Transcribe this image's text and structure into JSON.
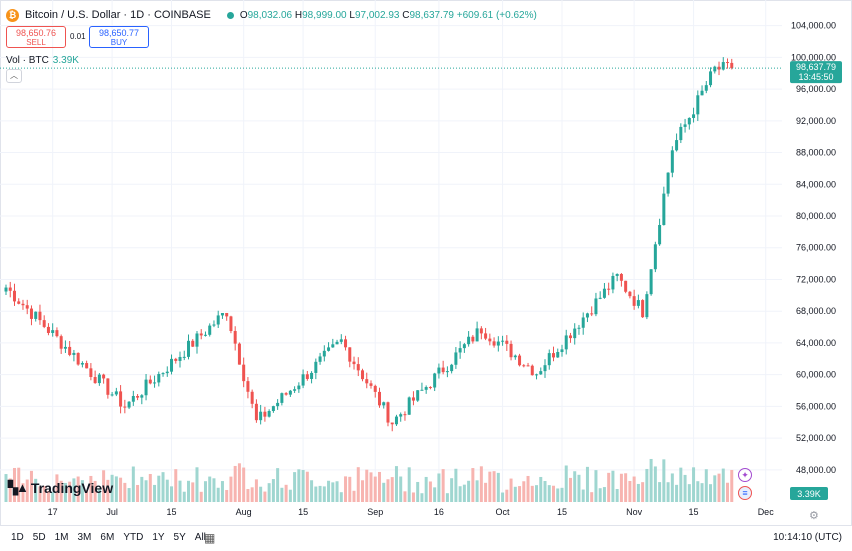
{
  "header": {
    "coin_icon": "bitcoin-icon",
    "coin_glyph": "₿",
    "title": "Bitcoin / U.S. Dollar · 1D · COINBASE",
    "open_label": "O",
    "open": "98,032.06",
    "high_label": "H",
    "high": "98,999.00",
    "low_label": "L",
    "low": "97,002.93",
    "close_label": "C",
    "close": "98,637.79",
    "change": "+609.61 (+0.62%)"
  },
  "trade": {
    "sell_price": "98,650.76",
    "sell_label": "SELL",
    "spread": "0.01",
    "buy_price": "98,650.77",
    "buy_label": "BUY"
  },
  "volume_legend": {
    "label": "Vol · BTC",
    "value": "3.39K"
  },
  "price_badge": {
    "price": "98,637.79",
    "countdown": "13:45:50"
  },
  "volume_badge": "3.39K",
  "logo_text": "TradingView",
  "bottom": {
    "ranges": [
      "1D",
      "5D",
      "1M",
      "3M",
      "6M",
      "YTD",
      "1Y",
      "5Y",
      "All"
    ],
    "calendar_icon": "calendar-icon",
    "time": "10:14:10 (UTC)"
  },
  "colors": {
    "up": "#26a69a",
    "down": "#ef5350",
    "vol_up": "#9fd6d0",
    "vol_down": "#f7b4b0",
    "grid": "#f0f3fa"
  },
  "chart_data": {
    "type": "candlestick",
    "title": "Bitcoin / U.S. Dollar · 1D · COINBASE",
    "y_ticks": [
      "104,000.00",
      "100,000.00",
      "96,000.00",
      "92,000.00",
      "88,000.00",
      "84,000.00",
      "80,000.00",
      "76,000.00",
      "72,000.00",
      "68,000.00",
      "64,000.00",
      "60,000.00",
      "56,000.00",
      "52,000.00",
      "48,000.00"
    ],
    "y_tick_values": [
      104000,
      100000,
      96000,
      92000,
      88000,
      84000,
      80000,
      76000,
      72000,
      68000,
      64000,
      60000,
      56000,
      52000,
      48000
    ],
    "ylim": [
      44200,
      106600
    ],
    "x_labels": [
      "17",
      "Jul",
      "15",
      "Aug",
      "15",
      "Sep",
      "16",
      "Oct",
      "15",
      "Nov",
      "15",
      "Dec"
    ],
    "x_label_days": [
      11,
      25,
      39,
      56,
      70,
      87,
      102,
      117,
      131,
      148,
      162,
      179
    ],
    "grid": true,
    "last_price": 98637.79,
    "key_points": [
      {
        "date": "2024-06-07",
        "close": 71000
      },
      {
        "date": "2024-07-05",
        "close": 56000
      },
      {
        "date": "2024-07-29",
        "close": 68000
      },
      {
        "date": "2024-08-05",
        "close": 54000
      },
      {
        "date": "2024-08-25",
        "close": 64200
      },
      {
        "date": "2024-09-06",
        "close": 54000
      },
      {
        "date": "2024-09-27",
        "close": 65800
      },
      {
        "date": "2024-10-10",
        "close": 60300
      },
      {
        "date": "2024-10-29",
        "close": 72300
      },
      {
        "date": "2024-11-04",
        "close": 68000
      },
      {
        "date": "2024-11-11",
        "close": 88500
      },
      {
        "date": "2024-11-21",
        "close": 98500
      },
      {
        "date": "2024-11-25",
        "close": 98637.79
      }
    ],
    "volume_series": "Vol · BTC",
    "volume_last": "3.39K"
  }
}
